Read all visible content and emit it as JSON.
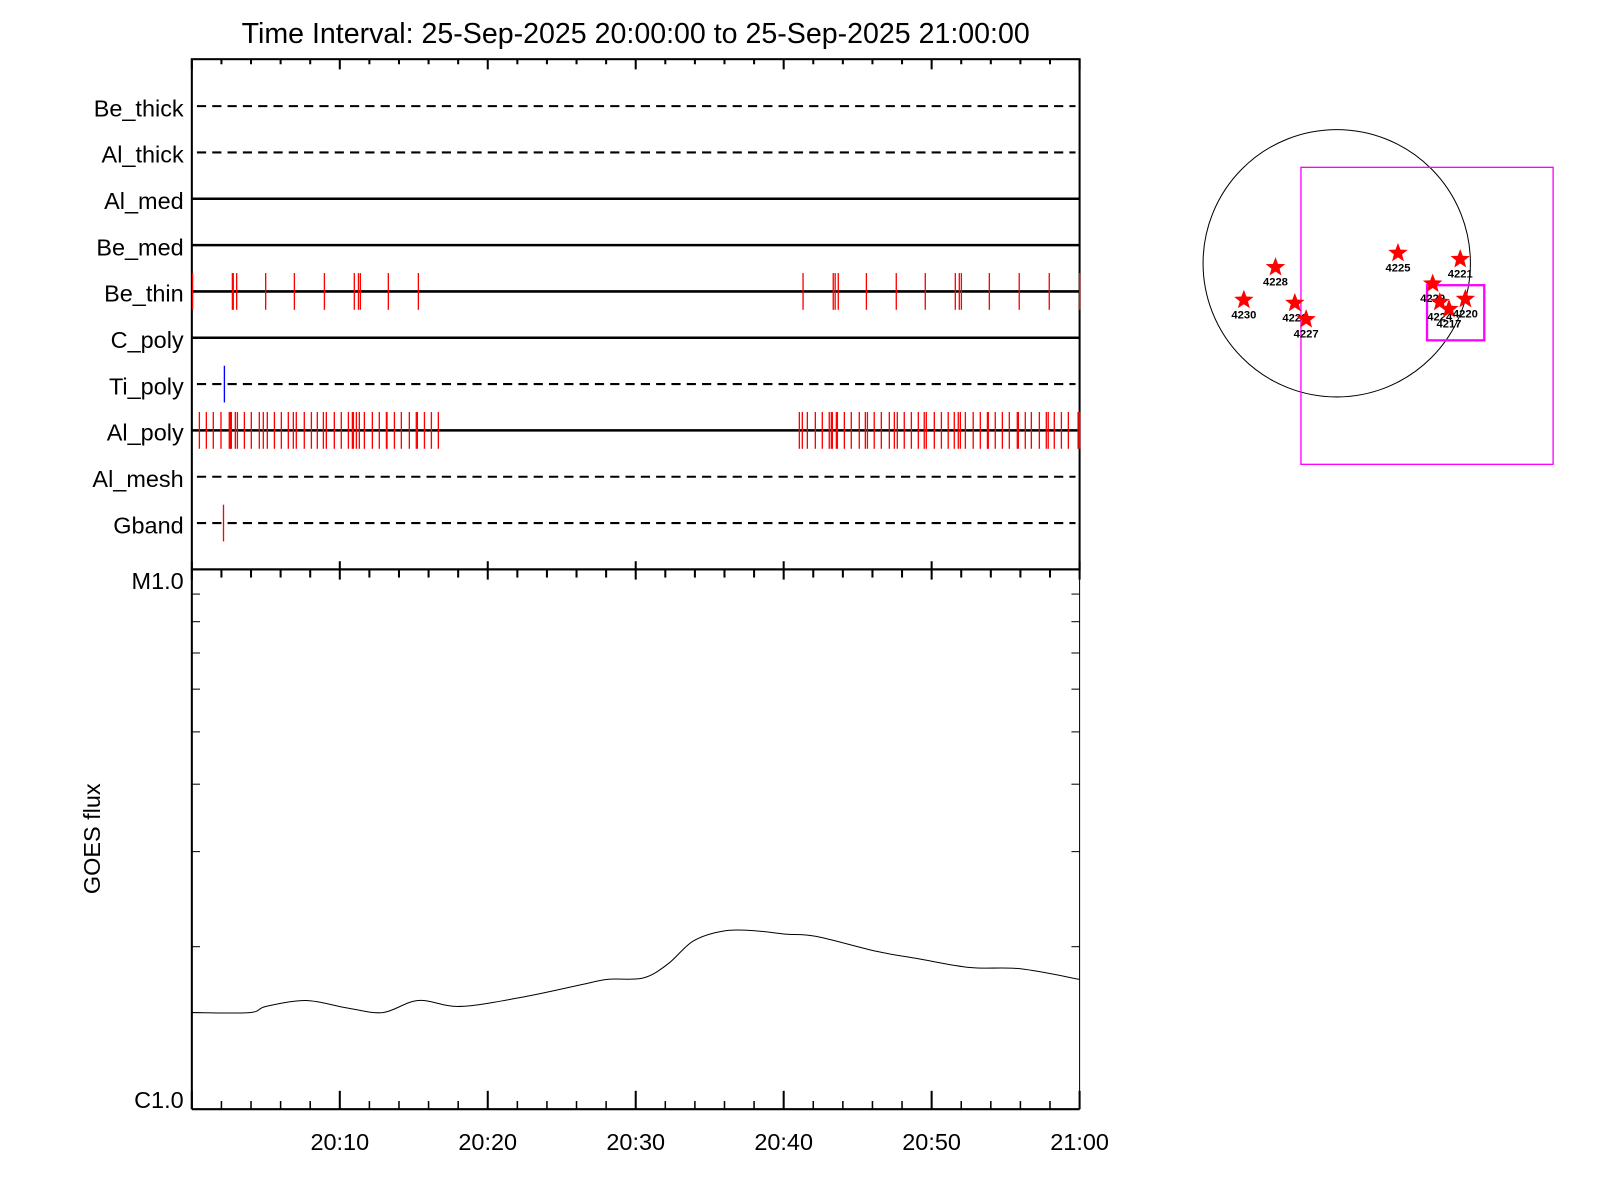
{
  "title": "Time Interval: 25-Sep-2025 20:00:00 to 25-Sep-2025 21:00:00",
  "colors": {
    "obs_red": "#ff0000",
    "obs_blue": "#0000ff",
    "fov_magenta": "#ff00ff",
    "axis": "#000000"
  },
  "chart_data": [
    {
      "type": "timeline",
      "name": "XRT filter observations",
      "x_unit": "minutes after 20:00:00",
      "xlim": [
        0,
        60
      ],
      "rows": [
        {
          "label": "Be_thick",
          "line": "dashed",
          "color": "#ff0000",
          "times": []
        },
        {
          "label": "Al_thick",
          "line": "dashed",
          "color": "#ff0000",
          "times": []
        },
        {
          "label": "Al_med",
          "line": "solid",
          "color": "#ff0000",
          "times": []
        },
        {
          "label": "Be_med",
          "line": "solid",
          "color": "#ff0000",
          "times": []
        },
        {
          "label": "Be_thin",
          "line": "solid",
          "color": "#ff0000",
          "times": [
            0.05,
            2.74,
            2.8,
            3.03,
            4.99,
            6.93,
            8.96,
            10.98,
            11.26,
            11.39,
            13.28,
            15.31,
            41.31,
            43.35,
            43.48,
            43.69,
            45.59,
            47.61,
            49.57,
            51.6,
            51.87,
            52.01,
            53.9,
            55.92,
            57.95,
            60
          ]
        },
        {
          "label": "C_poly",
          "line": "solid",
          "color": "#ff0000",
          "times": []
        },
        {
          "label": "Ti_poly",
          "line": "dashed",
          "color": "#0000ff",
          "times": [
            2.2
          ]
        },
        {
          "label": "Al_poly",
          "line": "solid",
          "color": "#ff0000",
          "times": [
            0.51,
            0.98,
            1.45,
            1.97,
            2.53,
            2.58,
            2.62,
            2.67,
            2.94,
            3.08,
            3.55,
            4.02,
            4.56,
            4.83,
            5.1,
            5.58,
            6.05,
            6.52,
            6.86,
            7.06,
            7.6,
            8.08,
            8.48,
            8.89,
            9.09,
            9.63,
            10.1,
            10.58,
            10.85,
            10.92,
            11.12,
            11.32,
            11.66,
            12.2,
            12.67,
            13.15,
            13.19,
            13.69,
            14.16,
            14.7,
            15.17,
            15.24,
            15.72,
            16.19,
            16.66,
            41.06,
            41.26,
            41.6,
            42.14,
            42.61,
            43.08,
            43.22,
            43.29,
            43.56,
            43.63,
            44.1,
            44.57,
            45.11,
            45.52,
            45.66,
            46.12,
            46.6,
            47.14,
            47.48,
            47.68,
            48.15,
            48.63,
            49.1,
            49.5,
            49.64,
            50.18,
            50.66,
            51.12,
            51.53,
            51.8,
            51.94,
            52.28,
            52.81,
            53.29,
            53.77,
            53.83,
            54.3,
            54.78,
            55.25,
            55.79,
            55.86,
            56.33,
            56.74,
            57.28,
            57.75,
            57.88,
            58.29,
            58.77,
            59.24,
            59.9,
            60
          ]
        },
        {
          "label": "Al_mesh",
          "line": "dashed",
          "color": "#ff0000",
          "times": []
        },
        {
          "label": "Gband",
          "line": "dashed",
          "color": "#ff0000",
          "times": [
            2.14
          ]
        }
      ]
    },
    {
      "type": "line",
      "name": "GOES flux",
      "ylabel": "GOES flux",
      "yscale": "log",
      "ylim": [
        1e-06,
        1e-05
      ],
      "ytick_labels": [
        "C1.0",
        "M1.0"
      ],
      "xlim": [
        0,
        60
      ],
      "xtick_labels": [
        "20:10",
        "20:20",
        "20:30",
        "20:40",
        "20:50",
        "21:00"
      ],
      "x": [
        0,
        3.9,
        5.0,
        7.7,
        10.5,
        12.9,
        15.3,
        18.1,
        22.2,
        26.3,
        28.1,
        30.5,
        32.2,
        33.9,
        36.0,
        38.1,
        40.1,
        42.2,
        46.3,
        49.1,
        52.6,
        56.0,
        60.0
      ],
      "y": [
        1.51e-06,
        1.51e-06,
        1.55e-06,
        1.59e-06,
        1.54e-06,
        1.51e-06,
        1.59e-06,
        1.55e-06,
        1.61e-06,
        1.7e-06,
        1.74e-06,
        1.75e-06,
        1.86e-06,
        2.05e-06,
        2.14e-06,
        2.14e-06,
        2.11e-06,
        2.09e-06,
        1.96e-06,
        1.9e-06,
        1.83e-06,
        1.82e-06,
        1.74e-06
      ]
    },
    {
      "type": "scatter",
      "name": "Solar disk active regions",
      "unit": "arcsec",
      "disk_radius": 960,
      "regions": [
        {
          "label": "4230",
          "x": -667,
          "y": -264
        },
        {
          "label": "4228",
          "x": -440,
          "y": -29
        },
        {
          "label": "4226",
          "x": -301,
          "y": -286
        },
        {
          "label": "4227",
          "x": -220,
          "y": -403
        },
        {
          "label": "4225",
          "x": 440,
          "y": 73
        },
        {
          "label": "4221",
          "x": 887,
          "y": 29
        },
        {
          "label": "4229",
          "x": 689,
          "y": -147
        },
        {
          "label": "4224",
          "x": 740,
          "y": -279
        },
        {
          "label": "4217",
          "x": 806,
          "y": -330
        },
        {
          "label": "4220",
          "x": 924,
          "y": -257
        }
      ],
      "fov_boxes": [
        {
          "x0": -257,
          "x1": 1554,
          "y0": -1444,
          "y1": 689
        },
        {
          "x0": 645,
          "x1": 1063,
          "y0": -557,
          "y1": -154
        },
        {
          "x0": 652,
          "x1": 1056,
          "y0": -550,
          "y1": -161
        }
      ]
    }
  ]
}
